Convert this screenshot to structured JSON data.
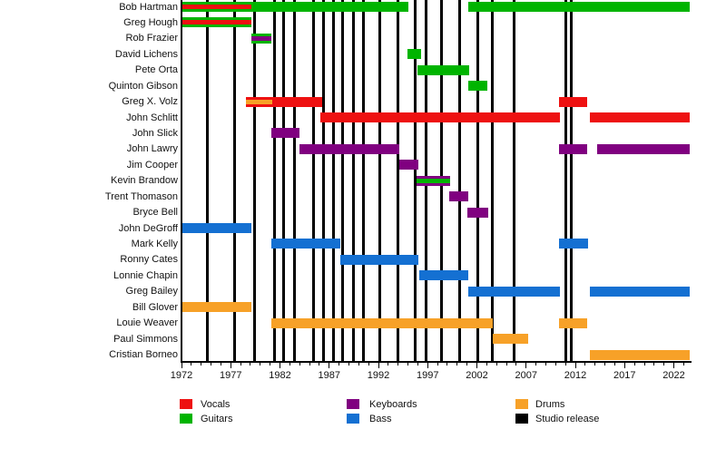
{
  "chart_data": {
    "type": "timeline",
    "description": "Band members timeline (gantt-style) with studio release markers",
    "colors": {
      "vocals": "#ee1111",
      "guitars": "#00b400",
      "keyboards": "#800080",
      "bass": "#1470d2",
      "drums": "#f7a128",
      "studio_release": "#000000",
      "axis": "#000000"
    },
    "axis": {
      "x_min": 1972,
      "x_max": 2023.6,
      "minor_tick_step": 1,
      "major_tick_years": [
        1972,
        1977,
        1982,
        1987,
        1992,
        1997,
        2002,
        2007,
        2012,
        2017,
        2022
      ],
      "major_tick_labels": [
        "1972",
        "1977",
        "1982",
        "1987",
        "1992",
        "1997",
        "2002",
        "2007",
        "2012",
        "2017",
        "2022"
      ]
    },
    "members": [
      {
        "name": "Bob Hartman",
        "segments": [
          {
            "role": "guitars",
            "start": 1972.1,
            "end": 1995.0,
            "overlay_role": "vocals",
            "overlay_start": 1972.1,
            "overlay_end": 1979.1
          },
          {
            "role": "guitars",
            "start": 2001.1,
            "end": 2023.6
          }
        ]
      },
      {
        "name": "Greg Hough",
        "segments": [
          {
            "role": "guitars",
            "start": 1972.1,
            "end": 1979.1,
            "overlay_role": "vocals",
            "overlay_start": 1972.1,
            "overlay_end": 1979.1
          }
        ]
      },
      {
        "name": "Rob Frazier",
        "segments": [
          {
            "role": "guitars",
            "start": 1979.1,
            "end": 1981.1,
            "overlay_role": "keyboards",
            "overlay_start": 1979.1,
            "overlay_end": 1981.1
          }
        ]
      },
      {
        "name": "David Lichens",
        "segments": [
          {
            "role": "guitars",
            "start": 1994.9,
            "end": 1996.3
          }
        ]
      },
      {
        "name": "Pete Orta",
        "segments": [
          {
            "role": "guitars",
            "start": 1996.0,
            "end": 2001.2
          }
        ]
      },
      {
        "name": "Quinton Gibson",
        "segments": [
          {
            "role": "guitars",
            "start": 2001.1,
            "end": 2003.1
          }
        ]
      },
      {
        "name": "Greg X. Volz",
        "segments": [
          {
            "role": "vocals",
            "start": 1978.5,
            "end": 1986.3,
            "overlay_role": "drums",
            "overlay_start": 1978.5,
            "overlay_end": 1981.2
          },
          {
            "role": "vocals",
            "start": 2010.3,
            "end": 2013.2
          }
        ]
      },
      {
        "name": "John Schlitt",
        "segments": [
          {
            "role": "vocals",
            "start": 1986.1,
            "end": 2010.4
          },
          {
            "role": "vocals",
            "start": 2013.5,
            "end": 2023.6
          }
        ]
      },
      {
        "name": "John Slick",
        "segments": [
          {
            "role": "keyboards",
            "start": 1981.1,
            "end": 1984.0
          }
        ]
      },
      {
        "name": "John Lawry",
        "segments": [
          {
            "role": "keyboards",
            "start": 1984.0,
            "end": 1994.1
          },
          {
            "role": "keyboards",
            "start": 2010.3,
            "end": 2013.2
          },
          {
            "role": "keyboards",
            "start": 2014.2,
            "end": 2023.6
          }
        ]
      },
      {
        "name": "Jim Cooper",
        "segments": [
          {
            "role": "keyboards",
            "start": 1994.1,
            "end": 1996.1
          }
        ]
      },
      {
        "name": "Kevin Brandow",
        "segments": [
          {
            "role": "keyboards",
            "start": 1995.9,
            "end": 1999.3,
            "overlay_role": "guitars",
            "overlay_start": 1995.9,
            "overlay_end": 1999.3
          }
        ]
      },
      {
        "name": "Trent Thomason",
        "segments": [
          {
            "role": "keyboards",
            "start": 1999.2,
            "end": 2001.1
          }
        ]
      },
      {
        "name": "Bryce Bell",
        "segments": [
          {
            "role": "keyboards",
            "start": 2001.0,
            "end": 2003.2
          }
        ]
      },
      {
        "name": "John DeGroff",
        "segments": [
          {
            "role": "bass",
            "start": 1972.1,
            "end": 1979.1
          }
        ]
      },
      {
        "name": "Mark Kelly",
        "segments": [
          {
            "role": "bass",
            "start": 1981.1,
            "end": 1988.1
          },
          {
            "role": "bass",
            "start": 2010.3,
            "end": 2013.3
          }
        ]
      },
      {
        "name": "Ronny Cates",
        "segments": [
          {
            "role": "bass",
            "start": 1988.1,
            "end": 1996.1
          }
        ]
      },
      {
        "name": "Lonnie Chapin",
        "segments": [
          {
            "role": "bass",
            "start": 1996.1,
            "end": 2001.1
          }
        ]
      },
      {
        "name": "Greg Bailey",
        "segments": [
          {
            "role": "bass",
            "start": 2001.1,
            "end": 2010.4
          },
          {
            "role": "bass",
            "start": 2013.5,
            "end": 2023.6
          }
        ]
      },
      {
        "name": "Bill Glover",
        "segments": [
          {
            "role": "drums",
            "start": 1972.1,
            "end": 1979.1
          }
        ]
      },
      {
        "name": "Louie Weaver",
        "segments": [
          {
            "role": "drums",
            "start": 1981.1,
            "end": 2003.6
          },
          {
            "role": "drums",
            "start": 2010.3,
            "end": 2013.2
          }
        ]
      },
      {
        "name": "Paul Simmons",
        "segments": [
          {
            "role": "drums",
            "start": 2003.6,
            "end": 2007.2
          }
        ]
      },
      {
        "name": "Cristian Borneo",
        "segments": [
          {
            "role": "drums",
            "start": 2013.5,
            "end": 2023.6
          }
        ]
      }
    ],
    "studio_releases": [
      1974.6,
      1977.4,
      1979.4,
      1981.4,
      1982.4,
      1983.5,
      1985.4,
      1986.4,
      1987.4,
      1988.4,
      1989.5,
      1990.5,
      1992.1,
      1994.0,
      1995.7,
      1996.8,
      1998.4,
      2000.2,
      2002.1,
      2003.6,
      2005.8,
      2011.0,
      2011.6
    ],
    "legend": [
      {
        "label": "Vocals",
        "role": "vocals"
      },
      {
        "label": "Guitars",
        "role": "guitars"
      },
      {
        "label": "Keyboards",
        "role": "keyboards"
      },
      {
        "label": "Bass",
        "role": "bass"
      },
      {
        "label": "Drums",
        "role": "drums"
      },
      {
        "label": "Studio release",
        "role": "studio_release"
      }
    ]
  }
}
